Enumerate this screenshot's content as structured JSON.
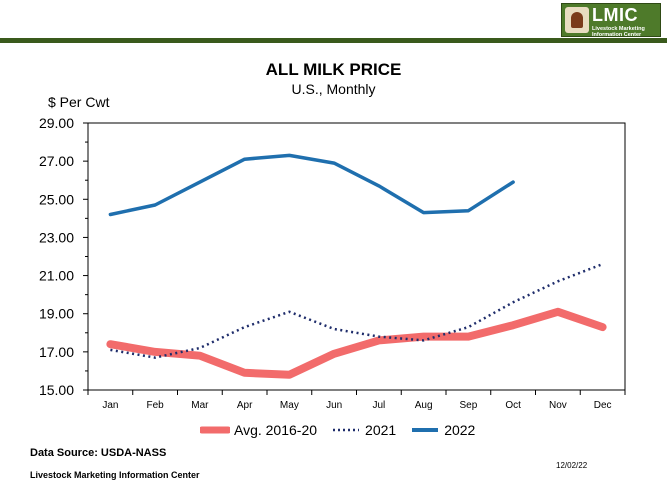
{
  "header": {
    "logo_text": "LMIC",
    "logo_sub1": "Livestock Marketing",
    "logo_sub2": "Information Center"
  },
  "chart_data": {
    "type": "line",
    "title": "ALL MILK PRICE",
    "subtitle": "U.S., Monthly",
    "ylabel": "$ Per Cwt",
    "xlabel": "",
    "categories": [
      "Jan",
      "Feb",
      "Mar",
      "Apr",
      "May",
      "Jun",
      "Jul",
      "Aug",
      "Sep",
      "Oct",
      "Nov",
      "Dec"
    ],
    "ylim": [
      15.0,
      29.0
    ],
    "yticks": [
      "15.00",
      "17.00",
      "19.00",
      "21.00",
      "23.00",
      "25.00",
      "27.00",
      "29.00"
    ],
    "grid": false,
    "legend_position": "bottom",
    "series": [
      {
        "name": "Avg. 2016-20",
        "color": "#f26b6b",
        "style": "thick-solid",
        "values": [
          17.4,
          17.0,
          16.8,
          15.9,
          15.8,
          16.9,
          17.6,
          17.8,
          17.8,
          18.4,
          19.1,
          18.3
        ]
      },
      {
        "name": "2021",
        "color": "#1f2d6b",
        "style": "dotted",
        "values": [
          17.1,
          16.7,
          17.2,
          18.3,
          19.1,
          18.2,
          17.8,
          17.6,
          18.3,
          19.6,
          20.7,
          21.6
        ]
      },
      {
        "name": "2022",
        "color": "#1f6fae",
        "style": "solid",
        "values": [
          24.2,
          24.7,
          25.9,
          27.1,
          27.3,
          26.9,
          25.7,
          24.3,
          24.4,
          25.9,
          null,
          null
        ]
      }
    ]
  },
  "footer": {
    "source": "Data Source:  USDA-NASS",
    "org": "Livestock Marketing Information Center",
    "date": "12/02/22"
  }
}
